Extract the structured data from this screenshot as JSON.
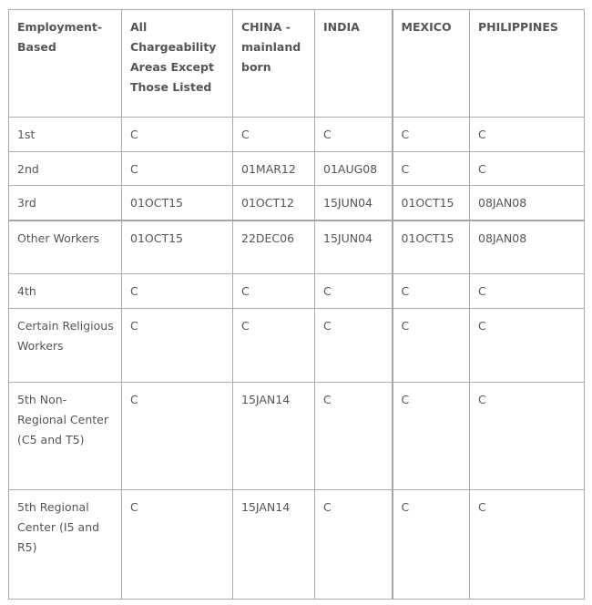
{
  "table": {
    "headers": [
      "Employment-Based",
      "All Chargeability Areas Except Those Listed",
      "CHINA - mainland born",
      "INDIA",
      "MEXICO",
      "PHILIPPINES"
    ],
    "rows": [
      [
        "1st",
        "C",
        "C",
        "C",
        "C",
        "C"
      ],
      [
        "2nd",
        "C",
        "01MAR12",
        "01AUG08",
        "C",
        "C"
      ],
      [
        "3rd",
        "01OCT15",
        "01OCT12",
        "15JUN04",
        "01OCT15",
        "08JAN08"
      ],
      [
        "Other Workers",
        "01OCT15",
        "22DEC06",
        "15JUN04",
        "01OCT15",
        "08JAN08"
      ],
      [
        "4th",
        "C",
        "C",
        "C",
        "C",
        "C"
      ],
      [
        "Certain Religious Workers",
        "C",
        "C",
        "C",
        "C",
        "C"
      ],
      [
        "5th Non-Regional Center (C5 and T5)",
        "C",
        "15JAN14",
        "C",
        "C",
        "C"
      ],
      [
        "5th Regional Center (I5 and R5)",
        "C",
        "15JAN14",
        "C",
        "C",
        "C"
      ]
    ]
  }
}
